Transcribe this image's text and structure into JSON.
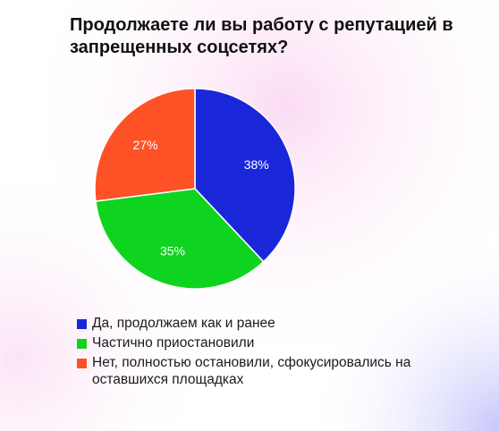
{
  "chart_data": {
    "type": "pie",
    "title": "Продолжаете ли вы работу с репутацией в запрещенных соцсетях?",
    "categories": [
      "Да, продолжаем как и ранее",
      "Частично приостановили",
      "Нет, полностью остановили, сфокусировались на оставшихся площадках"
    ],
    "values": [
      38,
      35,
      27
    ],
    "data_labels": [
      "38%",
      "35%",
      "27%"
    ],
    "colors": [
      "#1a27d9",
      "#0fd41f",
      "#ff5126"
    ],
    "legend_placement": "bottom"
  }
}
